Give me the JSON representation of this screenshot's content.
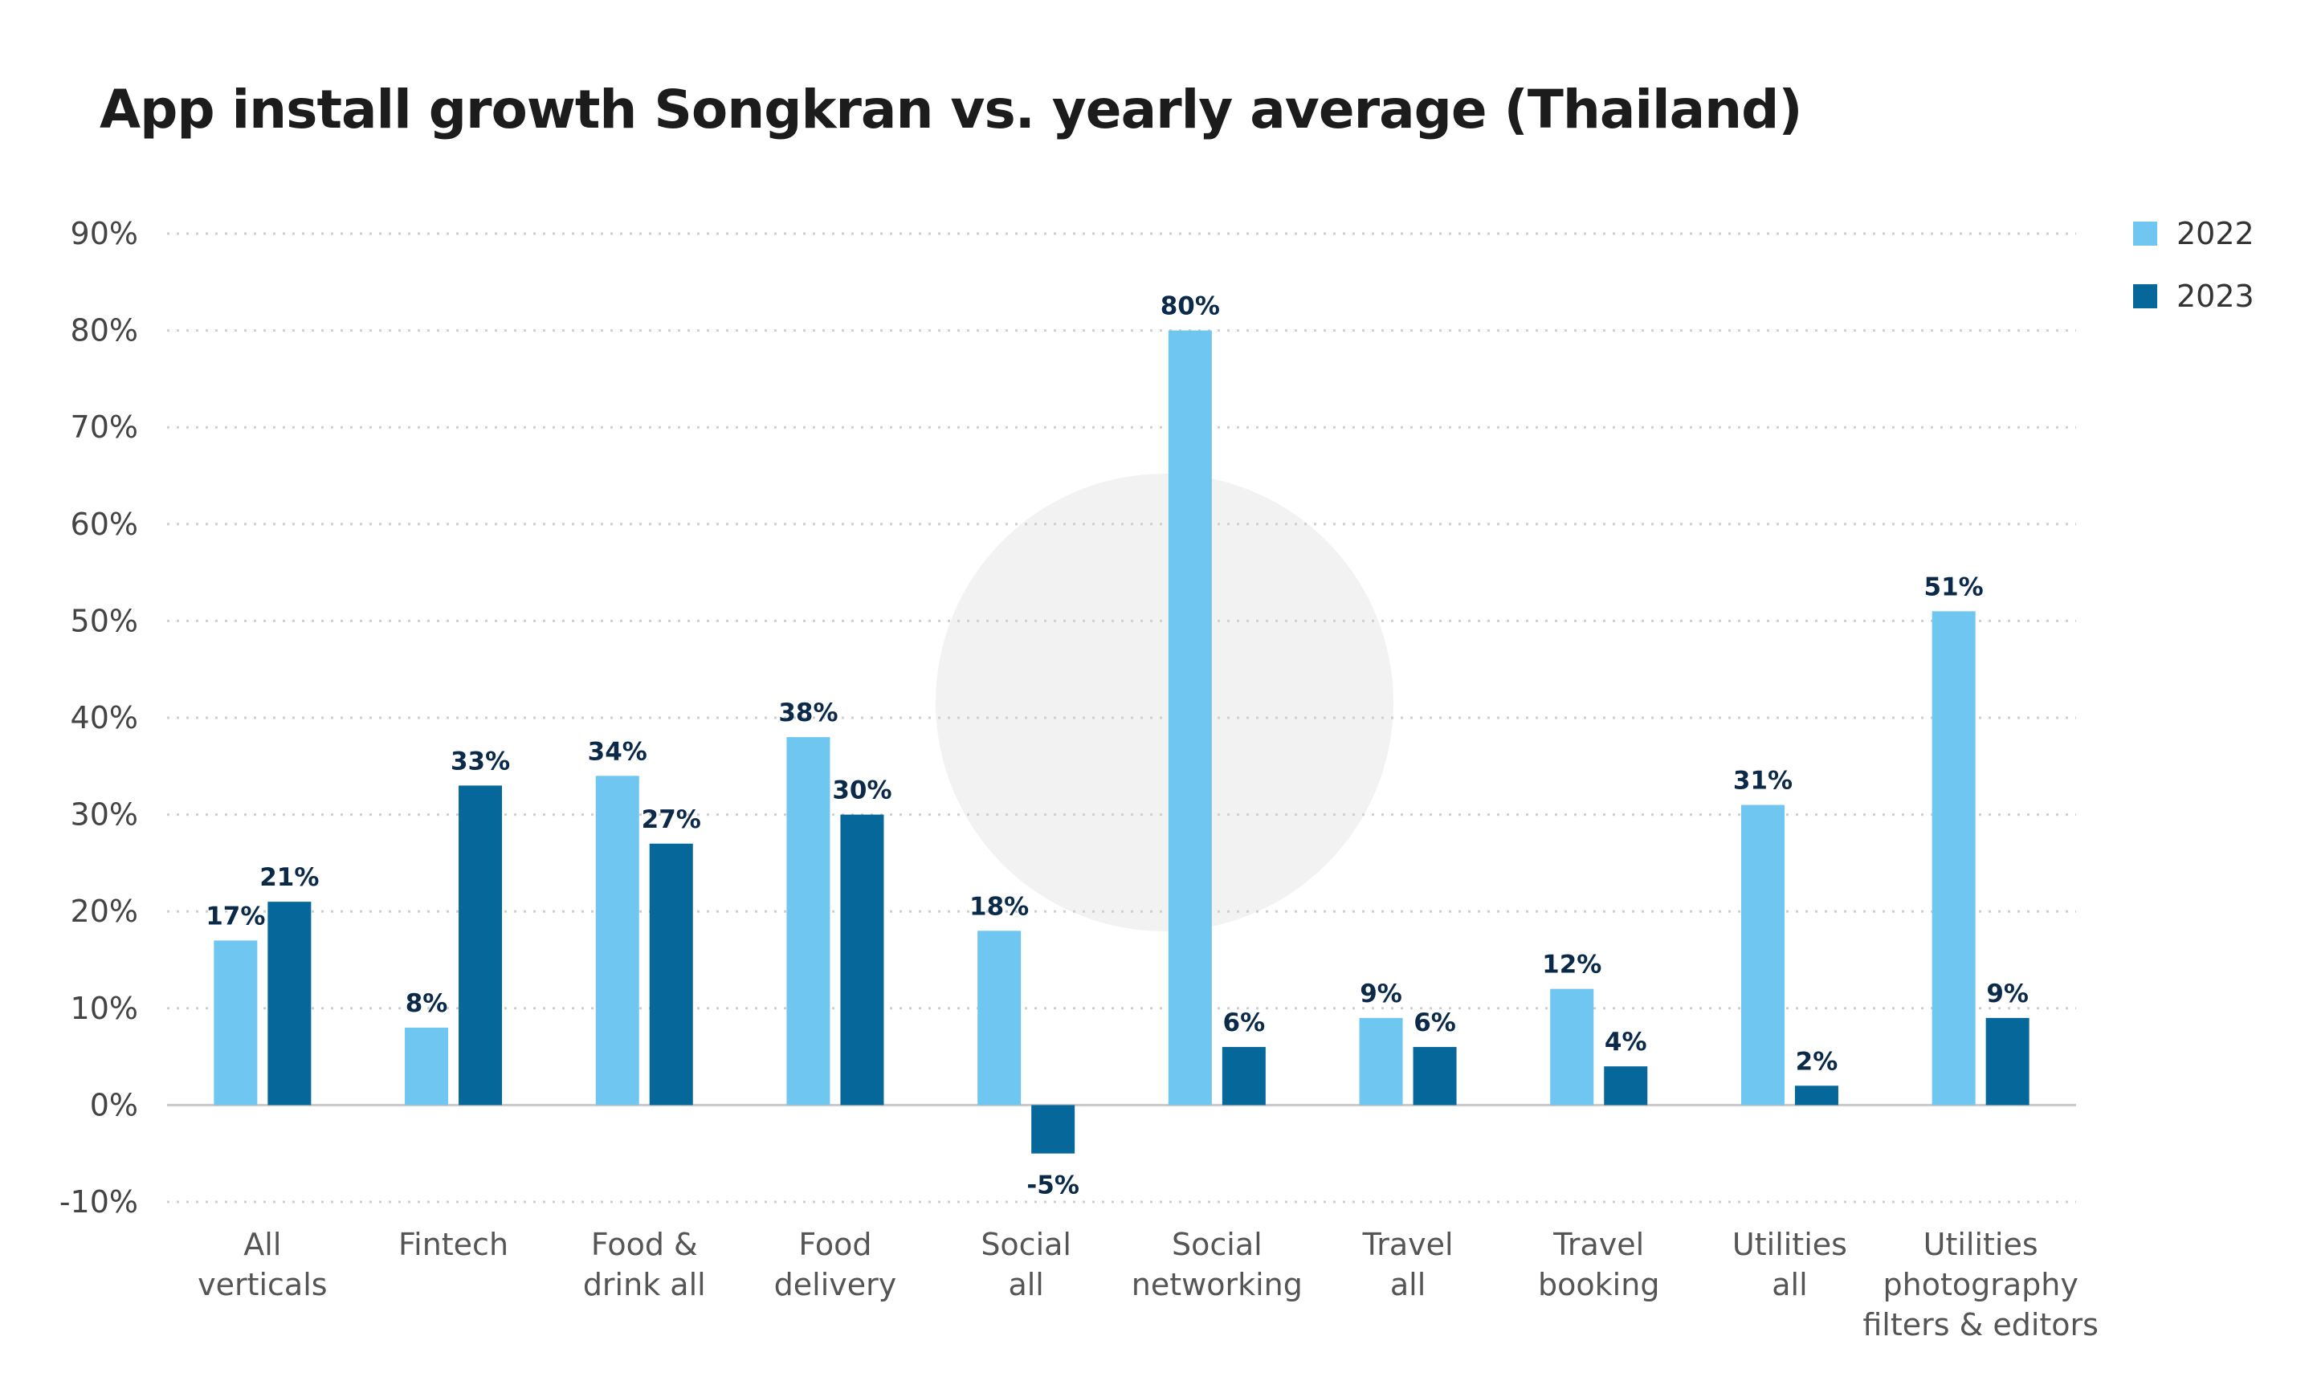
{
  "chart_data": {
    "type": "bar",
    "title": "App install growth Songkran vs. yearly average (Thailand)",
    "categories": [
      [
        "All",
        "verticals"
      ],
      [
        "Fintech"
      ],
      [
        "Food &",
        "drink all"
      ],
      [
        "Food",
        "delivery"
      ],
      [
        "Social",
        "all"
      ],
      [
        "Social",
        "networking"
      ],
      [
        "Travel",
        "all"
      ],
      [
        "Travel",
        "booking"
      ],
      [
        "Utilities",
        "all"
      ],
      [
        "Utilities",
        "photography",
        "filters & editors"
      ]
    ],
    "series": [
      {
        "name": "2022",
        "color": "#6ec6f1",
        "values": [
          17,
          8,
          34,
          38,
          18,
          80,
          9,
          12,
          31,
          51
        ],
        "labels": [
          "17%",
          "8%",
          "34%",
          "38%",
          "18%",
          "80%",
          "9%",
          "12%",
          "31%",
          "51%"
        ]
      },
      {
        "name": "2023",
        "color": "#05679a",
        "values": [
          21,
          33,
          27,
          30,
          -5,
          6,
          6,
          4,
          2,
          9
        ],
        "labels": [
          "21%",
          "33%",
          "27%",
          "30%",
          "-5%",
          "6%",
          "6%",
          "4%",
          "2%",
          "9%"
        ]
      }
    ],
    "ylim": [
      -10,
      90
    ],
    "yticks": [
      -10,
      0,
      10,
      20,
      30,
      40,
      50,
      60,
      70,
      80,
      90
    ],
    "ytick_labels": [
      "-10%",
      "0%",
      "10%",
      "20%",
      "30%",
      "40%",
      "50%",
      "60%",
      "70%",
      "80%",
      "90%"
    ],
    "xlabel": "",
    "ylabel": "",
    "grid": "horizontal dotted",
    "legend_position": "top-right",
    "label_color": "#0b2a4a"
  }
}
